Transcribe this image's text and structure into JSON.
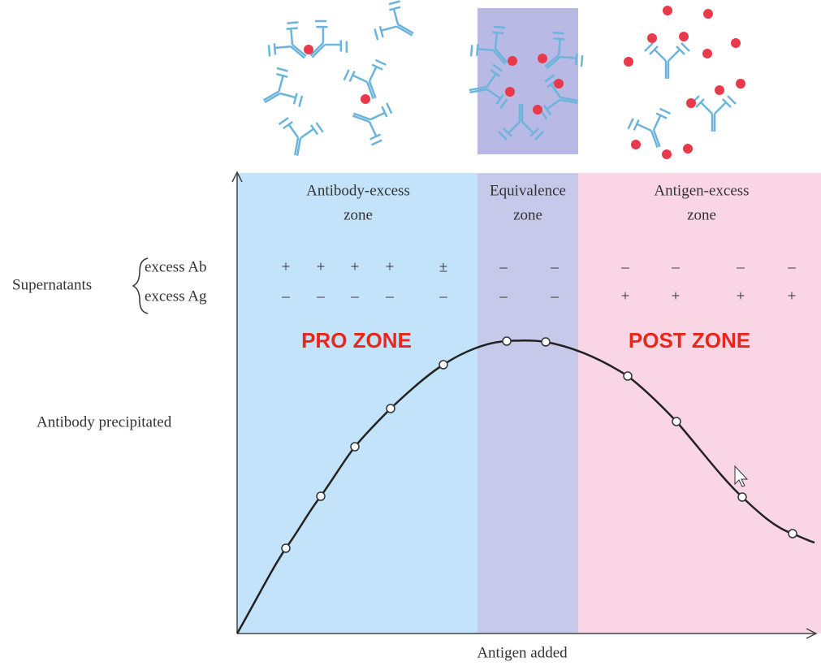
{
  "zones": [
    {
      "label": [
        "Antibody-excess",
        "zone"
      ]
    },
    {
      "label": [
        "Equivalence",
        "zone"
      ]
    },
    {
      "label": [
        "Antigen-excess",
        "zone"
      ]
    }
  ],
  "supernatants": {
    "label": "Supernatants",
    "rows": [
      {
        "label": "excess Ab",
        "signs": [
          "+",
          "+",
          "+",
          "+",
          "±",
          "–",
          "–",
          "–",
          "–",
          "–",
          "–"
        ]
      },
      {
        "label": "excess Ag",
        "signs": [
          "–",
          "–",
          "–",
          "–",
          "–",
          "–",
          "–",
          "+",
          "+",
          "+",
          "+"
        ]
      }
    ]
  },
  "pro_zone": "PRO ZONE",
  "post_zone": "POST ZONE",
  "y_axis_label": "Antibody precipitated",
  "x_axis_label": "Antigen added"
}
